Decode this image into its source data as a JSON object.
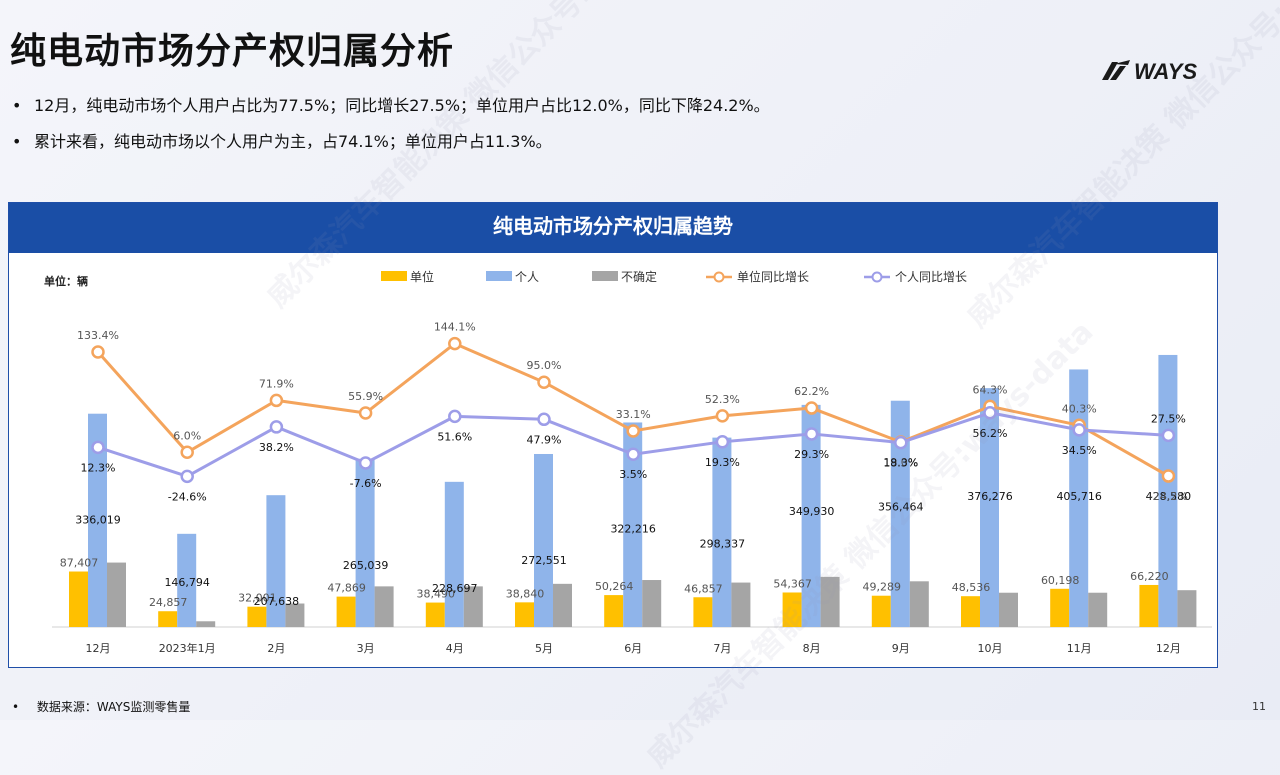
{
  "page": {
    "title": "纯电动市场分产权归属分析",
    "logo_text": "WAYS",
    "bullets": [
      "12月，纯电动市场个人用户占比为77.5%；同比增长27.5%；单位用户占比12.0%，同比下降24.2%。",
      "累计来看，纯电动市场以个人用户为主，占74.1%；单位用户占11.3%。"
    ],
    "footer_label": "数据来源：WAYS监测零售量",
    "page_number": "11",
    "watermark": "威尔森汽车智能决策 微信公众号:ways-data"
  },
  "colors": {
    "unit_bar": "#ffc000",
    "personal_bar": "#8fb4ea",
    "unknown_bar": "#a5a5a5",
    "unit_growth_line": "#f4a45c",
    "personal_growth_line": "#9d9de8",
    "header_blue": "#1a4ea6"
  },
  "chart_data": {
    "type": "bar",
    "title": "纯电动市场分产权归属趋势",
    "unit_label": "单位：辆",
    "legend_position": "top",
    "categories": [
      "12月",
      "2023年1月",
      "2月",
      "3月",
      "4月",
      "5月",
      "6月",
      "7月",
      "8月",
      "9月",
      "10月",
      "11月",
      "12月"
    ],
    "series": [
      {
        "name": "单位",
        "kind": "bar",
        "values": [
          87407,
          24857,
          32001,
          47869,
          38490,
          38840,
          50264,
          46857,
          54367,
          49289,
          48536,
          60198,
          66220
        ],
        "labels": [
          "87,407",
          "24,857",
          "32,001",
          "47,869",
          "38,490",
          "38,840",
          "50,264",
          "46,857",
          "54,367",
          "49,289",
          "48,536",
          "60,198",
          "66,220"
        ]
      },
      {
        "name": "个人",
        "kind": "bar",
        "values": [
          336019,
          146794,
          207638,
          265039,
          228697,
          272551,
          322216,
          298337,
          349930,
          356464,
          376276,
          405716,
          428580
        ],
        "labels": [
          "336,019",
          "146,794",
          "207,638",
          "265,039",
          "228,697",
          "272,551",
          "322,216",
          "298,337",
          "349,930",
          "356,464",
          "376,276",
          "405,716",
          "428,580"
        ]
      },
      {
        "name": "不确定",
        "kind": "bar",
        "values": [
          101500,
          9000,
          37000,
          64000,
          64000,
          68000,
          74000,
          70000,
          79000,
          72000,
          54000,
          54000,
          58000
        ],
        "labels": []
      },
      {
        "name": "单位同比增长",
        "kind": "line",
        "values": [
          133.4,
          6.0,
          71.9,
          55.9,
          144.1,
          95.0,
          33.1,
          52.3,
          62.2,
          19.0,
          64.3,
          40.3,
          -24.2
        ],
        "labels": [
          "133.4%",
          "6.0%",
          "71.9%",
          "55.9%",
          "144.1%",
          "95.0%",
          "33.1%",
          "52.3%",
          "62.2%",
          "19.0%",
          "64.3%",
          "40.3%",
          "-24.2%"
        ]
      },
      {
        "name": "个人同比增长",
        "kind": "line",
        "values": [
          12.3,
          -24.6,
          38.2,
          -7.6,
          51.6,
          47.9,
          3.5,
          19.3,
          29.3,
          18.3,
          56.2,
          34.5,
          27.5
        ],
        "labels": [
          "12.3%",
          "-24.6%",
          "38.2%",
          "-7.6%",
          "51.6%",
          "47.9%",
          "3.5%",
          "19.3%",
          "29.3%",
          "18.3%",
          "56.2%",
          "34.5%",
          "27.5%"
        ]
      }
    ]
  }
}
